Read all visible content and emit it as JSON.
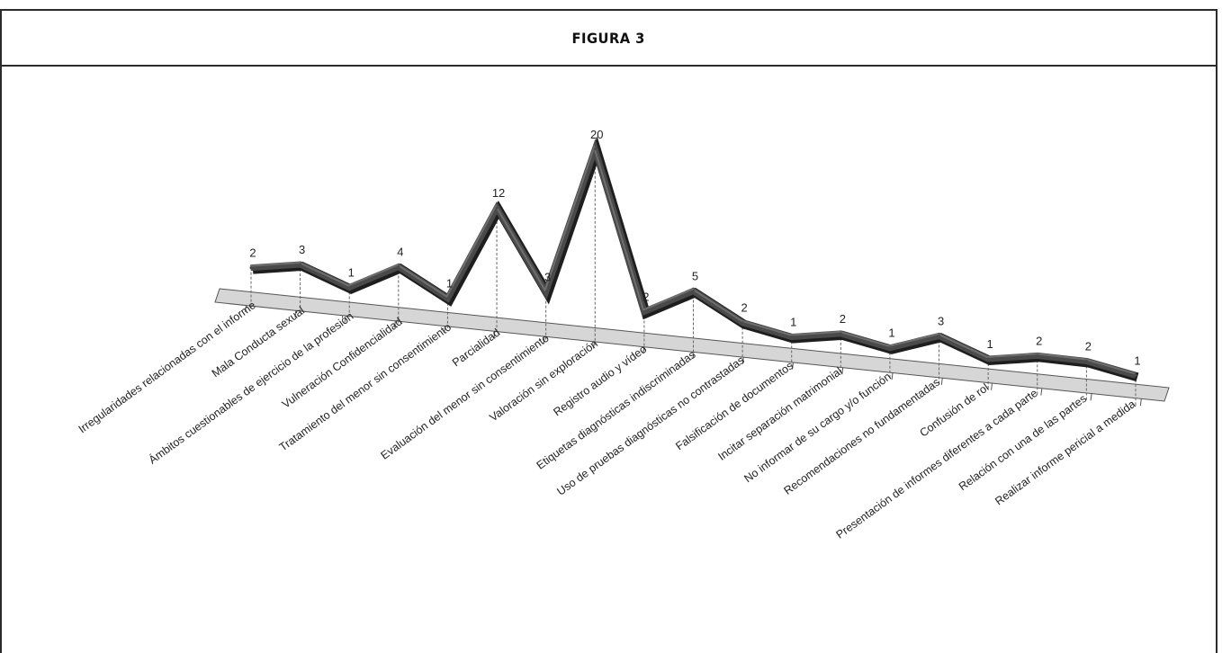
{
  "figure": {
    "title": "FIGURA 3"
  },
  "chart_data": {
    "type": "line",
    "title": "FIGURA 3",
    "xlabel": "",
    "ylabel": "",
    "ylim": [
      0,
      20
    ],
    "grid": false,
    "legend": "none",
    "categories": [
      "Irregularidades relacionadas con el informe",
      "Mala Conducta sexual",
      "Ámbitos cuestionables de ejercicio de la profesión",
      "Vulneración Confidencialidad",
      "Tratamiento del menor sin consentimiento",
      "Parcialidad",
      "Evaluación del menor sin consentimiento",
      "Valoración sin exploración",
      "Registro audio y vídeo",
      "Etiquetas diagnósticas indiscriminadas",
      "Uso de pruebas diagnósticas no contrastadas",
      "Falsificación de documentos",
      "Incitar separación matrimonial",
      "No informar de su cargo y/o función",
      "Recomendaciones no fundamentadas",
      "Confusión de rol",
      "Presentación de informes diferentes a cada parte",
      "Relación con una de las partes",
      "Realizar informe pericial a medida"
    ],
    "series": [
      {
        "values": [
          2,
          3,
          1,
          4,
          1,
          12,
          3,
          20,
          2,
          5,
          2,
          1,
          2,
          1,
          3,
          1,
          2,
          2,
          1
        ]
      }
    ],
    "colors": {
      "line": "#4a4a4a",
      "line_dark": "#1e1e1e",
      "floor": "#d6d6d6",
      "leader": "#666666"
    }
  }
}
